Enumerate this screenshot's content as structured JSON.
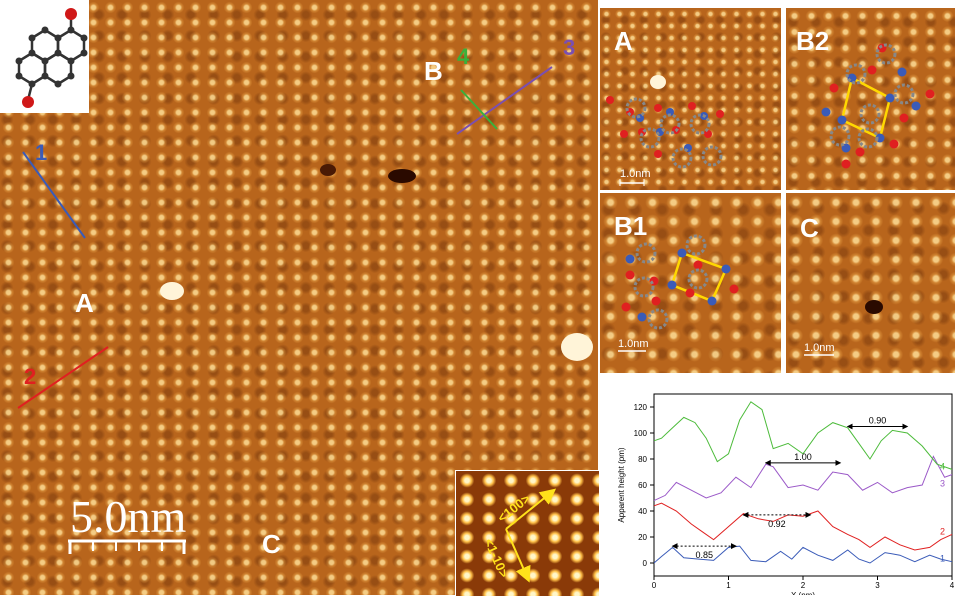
{
  "main_image": {
    "labels": {
      "A": "A",
      "B": "B",
      "C": "C"
    },
    "scale_bar": "5.0nm",
    "line_labels": [
      {
        "text": "1",
        "color": "#3a5bb8"
      },
      {
        "text": "2",
        "color": "#e02020"
      },
      {
        "text": "3",
        "color": "#7a4fb0"
      },
      {
        "text": "4",
        "color": "#3bb03b"
      }
    ],
    "inset": {
      "dir1": "<100>",
      "dir2": "<1-10>"
    }
  },
  "panels": [
    {
      "label": "A",
      "scale": "1.0nm"
    },
    {
      "label": "B2",
      "scale": ""
    },
    {
      "label": "B1",
      "scale": "1.0nm"
    },
    {
      "label": "C",
      "scale": "1.0nm"
    }
  ],
  "chart_data": {
    "type": "line",
    "xlabel": "X (nm)",
    "ylabel": "Apparent height (pm)",
    "xlim": [
      0,
      4
    ],
    "ylim": [
      -10,
      130
    ],
    "xticks": [
      0,
      1,
      2,
      3,
      4
    ],
    "yticks": [
      0,
      20,
      40,
      60,
      80,
      100,
      120
    ],
    "series": [
      {
        "name": "1",
        "color": "#3a5bb8",
        "x": [
          0,
          0.1,
          0.25,
          0.4,
          0.6,
          0.8,
          1.0,
          1.15,
          1.3,
          1.5,
          1.7,
          1.85,
          2.0,
          2.2,
          2.4,
          2.6,
          2.75,
          2.9,
          3.1,
          3.3,
          3.5,
          3.7,
          3.85,
          4.0
        ],
        "y": [
          0,
          5,
          12,
          4,
          3,
          2,
          12,
          13,
          2,
          1,
          9,
          3,
          12,
          6,
          2,
          10,
          3,
          0,
          8,
          6,
          1,
          6,
          3,
          1
        ]
      },
      {
        "name": "2",
        "color": "#e02020",
        "x": [
          0,
          0.1,
          0.3,
          0.5,
          0.65,
          0.8,
          1.0,
          1.2,
          1.4,
          1.6,
          1.8,
          2.0,
          2.2,
          2.4,
          2.6,
          2.75,
          2.9,
          3.1,
          3.3,
          3.5,
          3.7,
          3.85,
          4.0
        ],
        "y": [
          44,
          46,
          40,
          30,
          24,
          18,
          28,
          38,
          34,
          32,
          37,
          36,
          40,
          28,
          22,
          18,
          12,
          20,
          14,
          10,
          12,
          18,
          22
        ]
      },
      {
        "name": "3",
        "color": "#9b59c8",
        "x": [
          0,
          0.15,
          0.3,
          0.5,
          0.7,
          0.9,
          1.1,
          1.3,
          1.5,
          1.6,
          1.8,
          2.0,
          2.2,
          2.4,
          2.6,
          2.8,
          3.0,
          3.2,
          3.4,
          3.6,
          3.75,
          3.9,
          4.0
        ],
        "y": [
          48,
          52,
          62,
          56,
          50,
          54,
          66,
          58,
          76,
          74,
          58,
          60,
          56,
          70,
          68,
          56,
          62,
          54,
          58,
          60,
          82,
          66,
          68
        ]
      },
      {
        "name": "4",
        "color": "#4cbb3a",
        "x": [
          0,
          0.1,
          0.25,
          0.4,
          0.55,
          0.7,
          0.85,
          1.0,
          1.15,
          1.3,
          1.45,
          1.6,
          1.8,
          2.0,
          2.2,
          2.4,
          2.6,
          2.75,
          2.9,
          3.05,
          3.2,
          3.4,
          3.6,
          3.8,
          4.0
        ],
        "y": [
          94,
          96,
          104,
          112,
          108,
          96,
          78,
          84,
          110,
          124,
          118,
          88,
          92,
          84,
          100,
          108,
          104,
          92,
          80,
          94,
          102,
          100,
          90,
          76,
          72
        ]
      }
    ],
    "annotations": [
      {
        "text": "0.90",
        "x_from": 2.6,
        "x_to": 3.4,
        "y": 105,
        "style": "solid"
      },
      {
        "text": "1.00",
        "x_from": 1.5,
        "x_to": 2.5,
        "y": 77,
        "style": "solid"
      },
      {
        "text": "0.92",
        "x_from": 1.2,
        "x_to": 2.1,
        "y": 37,
        "style": "dotted"
      },
      {
        "text": "0.85",
        "x_from": 0.25,
        "x_to": 1.1,
        "y": 13,
        "style": "dotted"
      }
    ]
  }
}
